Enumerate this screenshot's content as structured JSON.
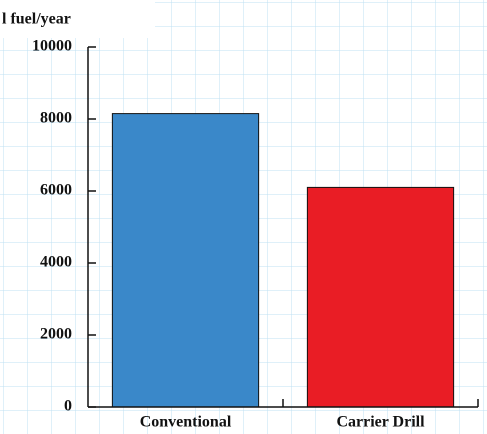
{
  "chart_data": {
    "type": "bar",
    "y_label": "l fuel/year",
    "categories": [
      "Conventional",
      "Carrier Drill"
    ],
    "values": [
      8150,
      6100
    ],
    "colors": [
      "#3a88c9",
      "#e91d25"
    ],
    "ylim": [
      0,
      10000
    ],
    "yticks": [
      0,
      2000,
      4000,
      6000,
      8000,
      10000
    ]
  }
}
